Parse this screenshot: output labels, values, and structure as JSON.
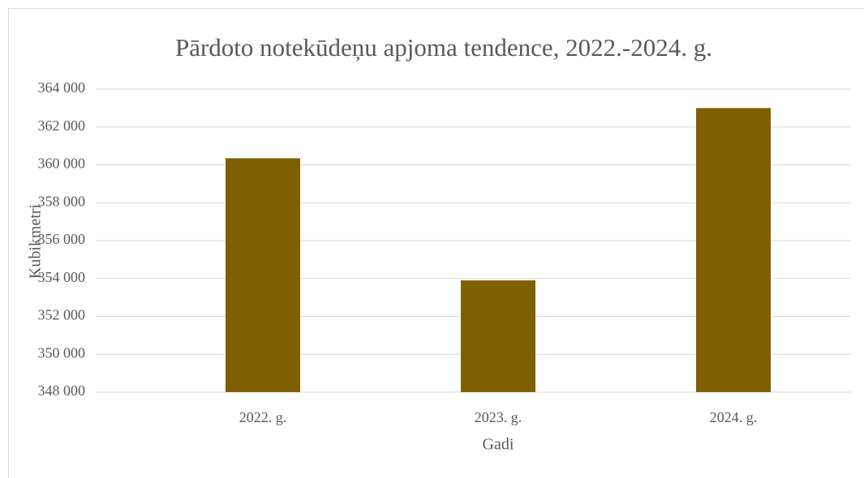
{
  "chart_data": {
    "type": "bar",
    "title": "Pārdoto notekūdeņu apjoma tendence, 2022.-2024. g.",
    "x_label": "Gadi",
    "y_label": "Kubikmetri",
    "categories": [
      "2022. g.",
      "2023. g.",
      "2024. g."
    ],
    "values": [
      360350,
      353900,
      363000
    ],
    "color": "#7f6000",
    "ylim": [
      348000,
      364000
    ],
    "yticks": [
      {
        "value": 348000,
        "label": "348 000"
      },
      {
        "value": 350000,
        "label": "350 000"
      },
      {
        "value": 352000,
        "label": "352 000"
      },
      {
        "value": 354000,
        "label": "354 000"
      },
      {
        "value": 356000,
        "label": "356 000"
      },
      {
        "value": 358000,
        "label": "358 000"
      },
      {
        "value": 360000,
        "label": "360 000"
      },
      {
        "value": 362000,
        "label": "362 000"
      },
      {
        "value": 364000,
        "label": "364 000"
      }
    ],
    "grid": true
  }
}
